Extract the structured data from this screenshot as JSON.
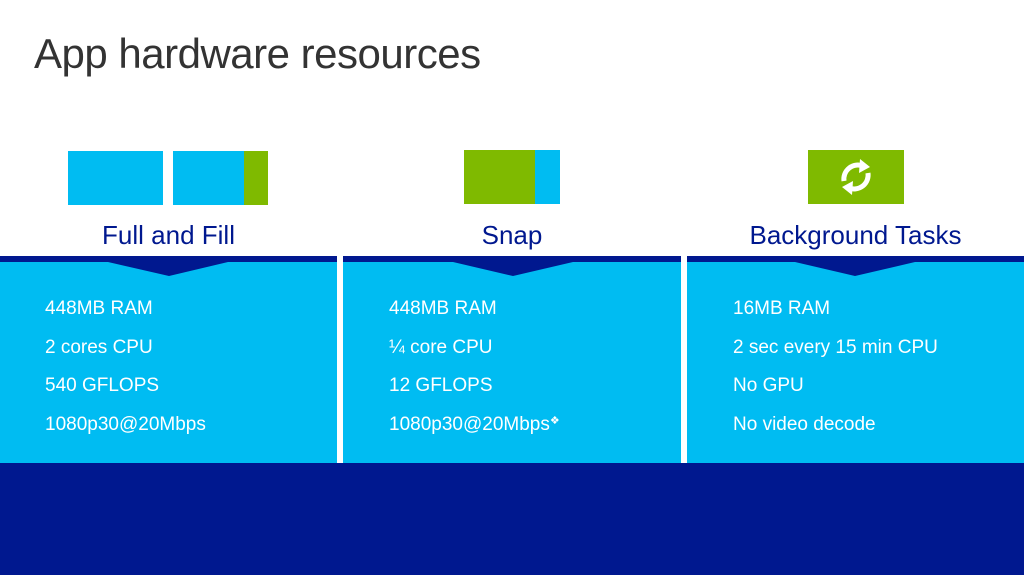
{
  "title": "App hardware resources",
  "colors": {
    "cyan": "#00bcf2",
    "green": "#7fba00",
    "navy": "#00188f"
  },
  "columns": [
    {
      "label": "Full and Fill",
      "icon": "full-fill-layout-icon",
      "lines": [
        "448MB RAM",
        "2 cores CPU",
        "540 GFLOPS",
        "1080p30@20Mbps"
      ]
    },
    {
      "label": "Snap",
      "icon": "snap-layout-icon",
      "lines": [
        "448MB RAM",
        "¼ core CPU",
        "12 GFLOPS",
        "1080p30@20Mbps"
      ],
      "footnote_mark": "❖"
    },
    {
      "label": "Background Tasks",
      "icon": "refresh-icon",
      "lines": [
        "16MB RAM",
        "2 sec every 15 min CPU",
        "No GPU",
        "No video decode"
      ]
    }
  ]
}
